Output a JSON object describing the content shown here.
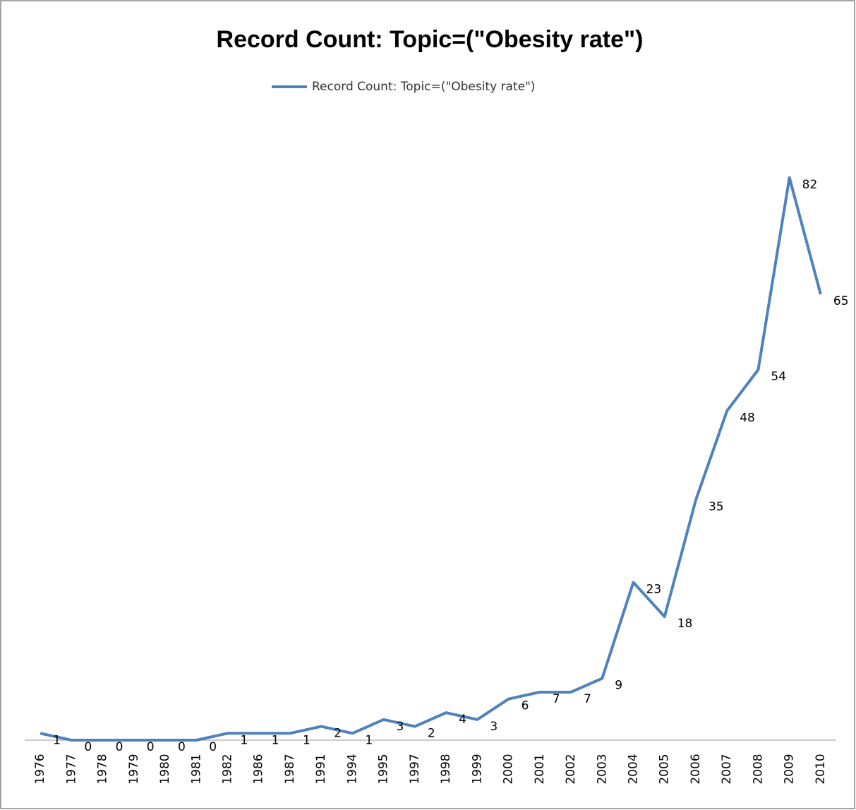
{
  "chart_data": {
    "type": "line",
    "title": "Record Count:  Topic=(\"Obesity rate\")",
    "categories": [
      "1976",
      "1977",
      "1978",
      "1979",
      "1980",
      "1981",
      "1982",
      "1986",
      "1987",
      "1991",
      "1994",
      "1995",
      "1997",
      "1998",
      "1999",
      "2000",
      "2001",
      "2002",
      "2003",
      "2004",
      "2005",
      "2006",
      "2007",
      "2008",
      "2009",
      "2010"
    ],
    "series": [
      {
        "name": "Record Count:  Topic=(\"Obesity rate\")",
        "color": "#4f81bd",
        "values": [
          1,
          0,
          0,
          0,
          0,
          0,
          1,
          1,
          1,
          2,
          1,
          3,
          2,
          4,
          3,
          6,
          7,
          7,
          9,
          23,
          18,
          35,
          48,
          54,
          82,
          65
        ]
      }
    ],
    "ylim": [
      0,
      90
    ],
    "legend": "top"
  }
}
